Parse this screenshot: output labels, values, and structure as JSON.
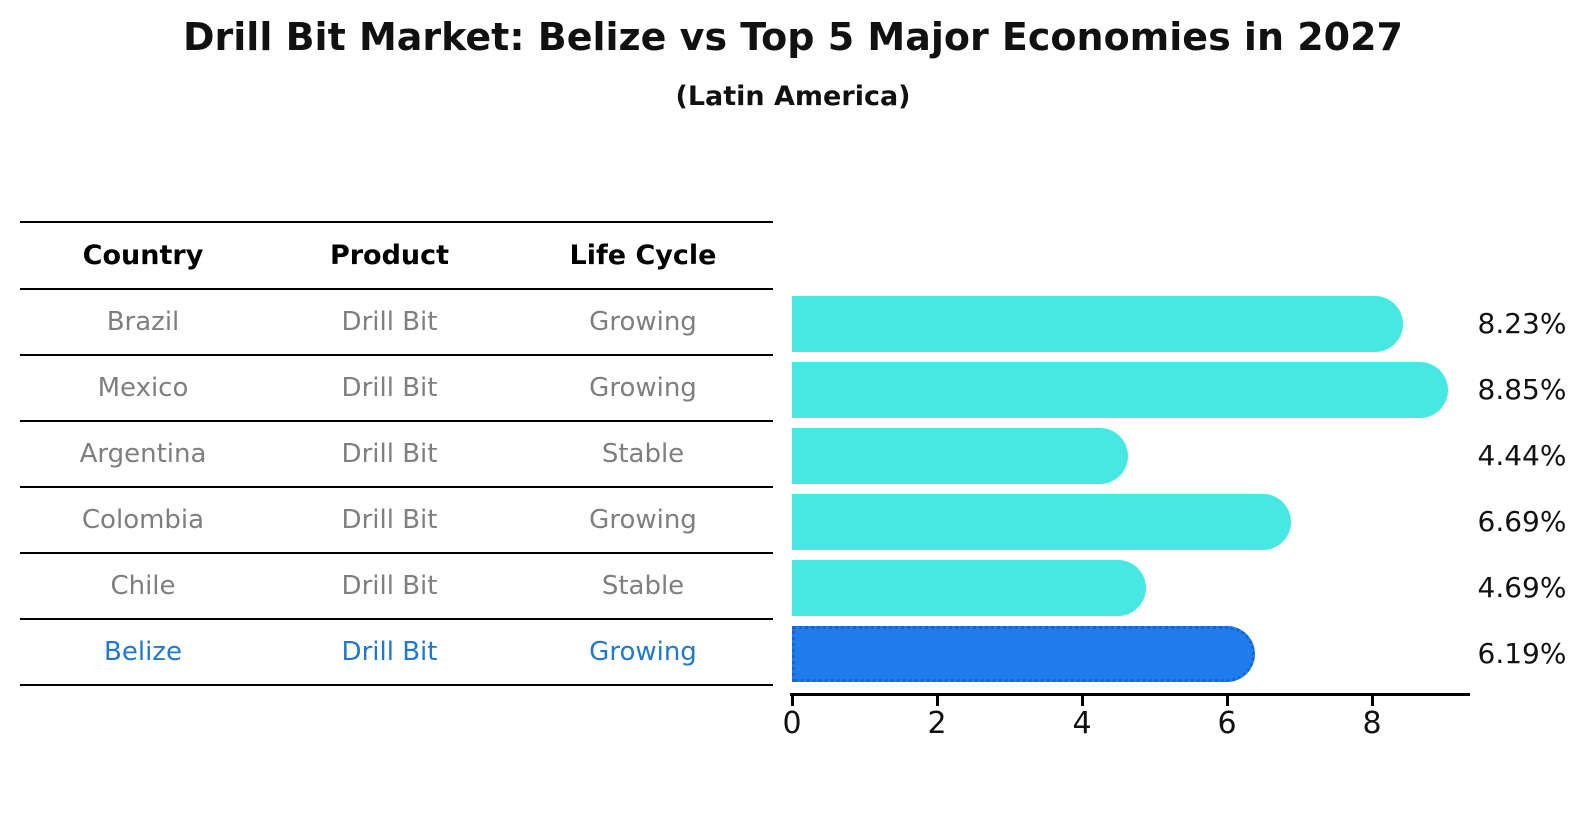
{
  "header": {
    "title": "Drill Bit Market: Belize vs Top 5 Major Economies in 2027",
    "subtitle": "(Latin America)"
  },
  "table": {
    "columns": [
      "Country",
      "Product",
      "Life Cycle"
    ],
    "rows": [
      {
        "cells": [
          "Brazil",
          "Drill Bit",
          "Growing"
        ],
        "highlight": false
      },
      {
        "cells": [
          "Mexico",
          "Drill Bit",
          "Growing"
        ],
        "highlight": false
      },
      {
        "cells": [
          "Argentina",
          "Drill Bit",
          "Stable"
        ],
        "highlight": false
      },
      {
        "cells": [
          "Colombia",
          "Drill Bit",
          "Growing"
        ],
        "highlight": false
      },
      {
        "cells": [
          "Chile",
          "Drill Bit",
          "Stable"
        ],
        "highlight": false
      },
      {
        "cells": [
          "Belize",
          "Drill Bit",
          "Growing"
        ],
        "highlight": true
      }
    ]
  },
  "chart_data": {
    "type": "bar",
    "orientation": "horizontal",
    "title": "Drill Bit Market: Belize vs Top 5 Major Economies in 2027",
    "subtitle": "(Latin America)",
    "categories": [
      "Brazil",
      "Mexico",
      "Argentina",
      "Colombia",
      "Chile",
      "Belize"
    ],
    "values": [
      8.23,
      8.85,
      4.44,
      6.69,
      4.69,
      6.19
    ],
    "value_labels": [
      "8.23%",
      "8.85%",
      "4.44%",
      "6.69%",
      "4.69%",
      "6.19%"
    ],
    "xlim": [
      0,
      9.3
    ],
    "xticks": [
      "0",
      "2",
      "4",
      "6",
      "8"
    ],
    "grid": false,
    "legend": false,
    "highlight_index": 5,
    "colors": {
      "bar": "#47e8e3",
      "highlight_bar": "#1e7deb",
      "highlight_bar_border": "#1565d8",
      "highlight_text": "#1f78d1",
      "row_text": "#7f7f7f",
      "axis": "#000000"
    }
  }
}
